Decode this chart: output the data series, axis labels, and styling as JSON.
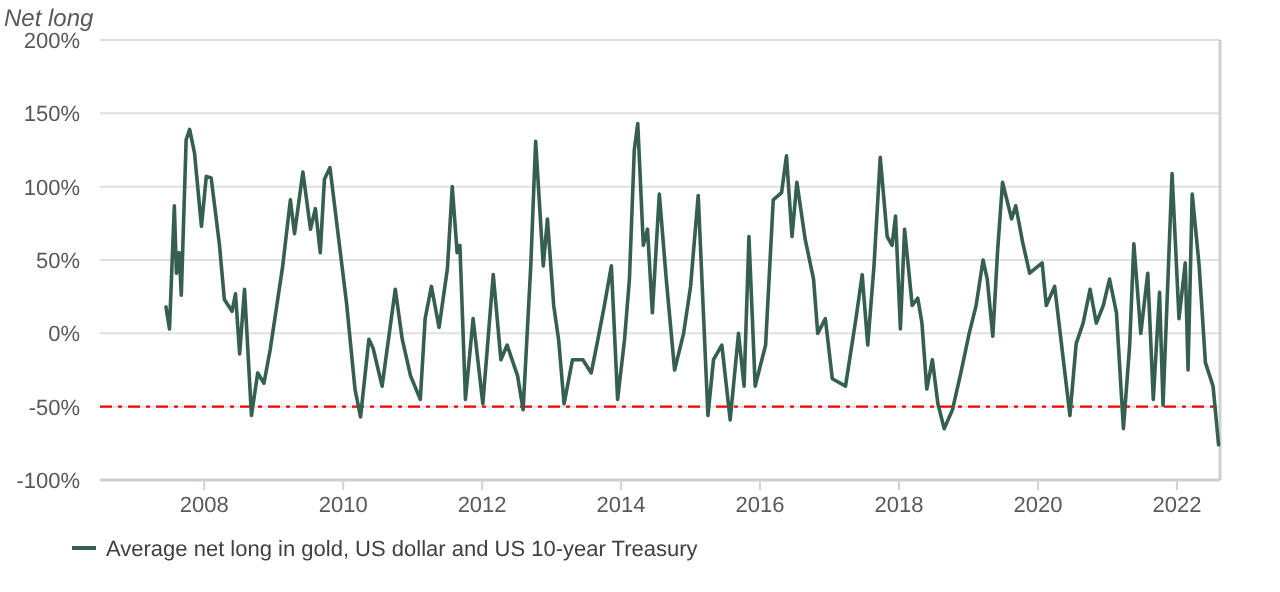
{
  "chart_data": {
    "type": "line",
    "ylabel": "Net long",
    "xlim": [
      2006.5,
      2022.62
    ],
    "xticks": [
      2008,
      2010,
      2012,
      2014,
      2016,
      2018,
      2020,
      2022
    ],
    "ylim": [
      -100,
      200
    ],
    "yticks": [
      {
        "value": -100,
        "label": "-100%"
      },
      {
        "value": -50,
        "label": "-50%"
      },
      {
        "value": 0,
        "label": "0%"
      },
      {
        "value": 50,
        "label": "50%"
      },
      {
        "value": 100,
        "label": "100%"
      },
      {
        "value": 150,
        "label": "150%"
      },
      {
        "value": 200,
        "label": "200%"
      }
    ],
    "grid": "y",
    "legend": "bottom",
    "line_style": "solid",
    "marker": "none",
    "ref_lines": [
      {
        "axis": "y",
        "value": -50,
        "color": "#ff0000",
        "line_style": "dashdot"
      }
    ],
    "series": [
      {
        "name": "Average net long in gold, US dollar and US 10-year Treasury",
        "color": "#35604e",
        "x": [
          2007.45,
          2007.5,
          2007.57,
          2007.6,
          2007.64,
          2007.67,
          2007.74,
          2007.79,
          2007.86,
          2007.96,
          2008.03,
          2008.1,
          2008.22,
          2008.29,
          2008.4,
          2008.45,
          2008.51,
          2008.58,
          2008.68,
          2008.77,
          2008.86,
          2008.95,
          2009.13,
          2009.24,
          2009.3,
          2009.42,
          2009.53,
          2009.6,
          2009.67,
          2009.73,
          2009.81,
          2009.9,
          2010.05,
          2010.17,
          2010.25,
          2010.37,
          2010.43,
          2010.56,
          2010.75,
          2010.85,
          2010.97,
          2011.11,
          2011.18,
          2011.27,
          2011.38,
          2011.5,
          2011.57,
          2011.64,
          2011.68,
          2011.76,
          2011.87,
          2012.01,
          2012.16,
          2012.27,
          2012.36,
          2012.51,
          2012.59,
          2012.7,
          2012.77,
          2012.88,
          2012.94,
          2013.03,
          2013.1,
          2013.18,
          2013.3,
          2013.45,
          2013.57,
          2013.65,
          2013.76,
          2013.86,
          2013.95,
          2014.05,
          2014.12,
          2014.19,
          2014.24,
          2014.32,
          2014.38,
          2014.45,
          2014.55,
          2014.65,
          2014.77,
          2014.9,
          2015.0,
          2015.11,
          2015.25,
          2015.33,
          2015.45,
          2015.57,
          2015.69,
          2015.77,
          2015.84,
          2015.93,
          2016.08,
          2016.19,
          2016.31,
          2016.38,
          2016.46,
          2016.53,
          2016.65,
          2016.77,
          2016.83,
          2016.94,
          2017.04,
          2017.23,
          2017.38,
          2017.47,
          2017.55,
          2017.64,
          2017.73,
          2017.83,
          2017.9,
          2017.95,
          2018.02,
          2018.08,
          2018.19,
          2018.27,
          2018.33,
          2018.4,
          2018.48,
          2018.56,
          2018.65,
          2018.77,
          2018.89,
          2019.01,
          2019.11,
          2019.21,
          2019.27,
          2019.35,
          2019.42,
          2019.49,
          2019.62,
          2019.68,
          2019.78,
          2019.88,
          2020.06,
          2020.12,
          2020.24,
          2020.32,
          2020.46,
          2020.55,
          2020.65,
          2020.75,
          2020.84,
          2020.94,
          2021.03,
          2021.13,
          2021.23,
          2021.32,
          2021.38,
          2021.48,
          2021.58,
          2021.66,
          2021.75,
          2021.8,
          2021.93,
          2022.03,
          2022.12,
          2022.16,
          2022.22,
          2022.32,
          2022.41,
          2022.52,
          2022.6
        ],
        "values": [
          18,
          3,
          87,
          41,
          55,
          26,
          132,
          139,
          123,
          73,
          107,
          106,
          60,
          23,
          15,
          27,
          -14,
          30,
          -56,
          -27,
          -34,
          -11,
          46,
          91,
          68,
          110,
          71,
          85,
          55,
          105,
          113,
          78,
          20,
          -38,
          -57,
          -4,
          -10,
          -36,
          30,
          -4,
          -29,
          -45,
          10,
          32,
          4,
          44,
          100,
          55,
          60,
          -45,
          10,
          -48,
          40,
          -18,
          -8,
          -29,
          -52,
          46,
          131,
          46,
          78,
          19,
          -4,
          -48,
          -18,
          -18,
          -27,
          -8,
          19,
          46,
          -45,
          -4,
          37,
          125,
          143,
          60,
          71,
          14,
          95,
          37,
          -25,
          0,
          32,
          94,
          -56,
          -18,
          -8,
          -59,
          0,
          -36,
          66,
          -36,
          -8,
          91,
          96,
          121,
          66,
          103,
          64,
          37,
          0,
          10,
          -31,
          -36,
          10,
          40,
          -8,
          46,
          120,
          66,
          60,
          80,
          3,
          71,
          19,
          24,
          7,
          -38,
          -18,
          -48,
          -65,
          -52,
          -27,
          0,
          19,
          50,
          37,
          -2,
          57,
          103,
          78,
          87,
          62,
          41,
          48,
          19,
          32,
          0,
          -56,
          -7,
          7,
          30,
          7,
          19,
          37,
          14,
          -65,
          -8,
          61,
          0,
          41,
          -45,
          28,
          -49,
          109,
          10,
          48,
          -25,
          95,
          46,
          -20,
          -36,
          -76
        ]
      }
    ]
  }
}
